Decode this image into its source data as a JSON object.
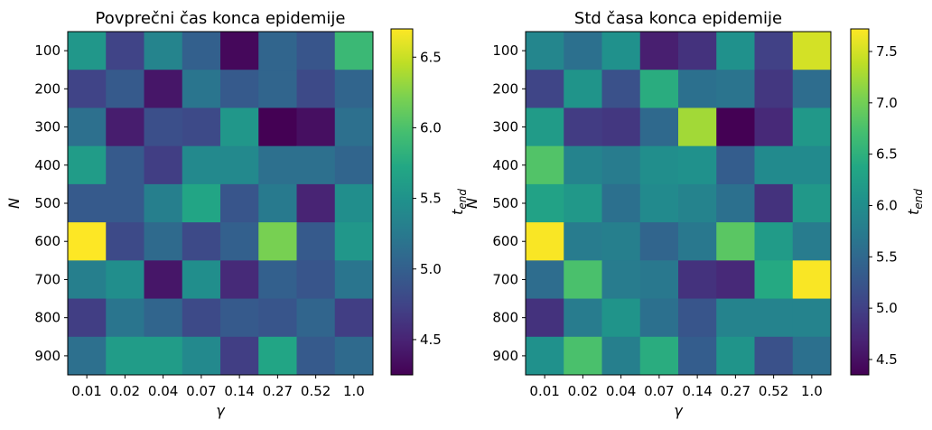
{
  "chart_data": [
    {
      "type": "heatmap",
      "title": "Povprečni čas konca epidemije",
      "xlabel": "γ",
      "ylabel": "N",
      "x_categories": [
        "0.01",
        "0.02",
        "0.04",
        "0.07",
        "0.14",
        "0.27",
        "0.52",
        "1.0"
      ],
      "y_categories": [
        "100",
        "200",
        "300",
        "400",
        "500",
        "600",
        "700",
        "800",
        "900"
      ],
      "values": [
        [
          5.55,
          4.75,
          5.35,
          5.0,
          4.3,
          5.05,
          4.9,
          5.9
        ],
        [
          4.75,
          4.95,
          4.4,
          5.2,
          4.95,
          5.05,
          4.8,
          5.05
        ],
        [
          5.15,
          4.45,
          4.85,
          4.8,
          5.55,
          4.25,
          4.35,
          5.15
        ],
        [
          5.6,
          4.95,
          4.7,
          5.4,
          5.4,
          5.15,
          5.15,
          5.05
        ],
        [
          4.95,
          4.95,
          5.3,
          5.7,
          4.9,
          5.25,
          4.5,
          5.45
        ],
        [
          6.7,
          4.8,
          5.1,
          4.8,
          5.0,
          6.2,
          4.95,
          5.55
        ],
        [
          5.3,
          5.45,
          4.4,
          5.45,
          4.55,
          5.0,
          4.9,
          5.2
        ],
        [
          4.7,
          5.2,
          5.05,
          4.8,
          4.95,
          4.9,
          5.05,
          4.7
        ],
        [
          5.15,
          5.6,
          5.6,
          5.4,
          4.7,
          5.7,
          4.95,
          5.1
        ]
      ],
      "colorbar": {
        "label": "t_end",
        "min": 4.25,
        "max": 6.7,
        "ticks": [
          "4.5",
          "5.0",
          "5.5",
          "6.0",
          "6.5"
        ]
      }
    },
    {
      "type": "heatmap",
      "title": "Std časa konca epidemije",
      "xlabel": "γ",
      "ylabel": "N",
      "x_categories": [
        "0.01",
        "0.02",
        "0.04",
        "0.07",
        "0.14",
        "0.27",
        "0.52",
        "1.0"
      ],
      "y_categories": [
        "100",
        "200",
        "300",
        "400",
        "500",
        "600",
        "700",
        "800",
        "900"
      ],
      "values": [
        [
          5.9,
          5.6,
          6.05,
          4.65,
          4.85,
          6.05,
          5.0,
          7.5
        ],
        [
          5.05,
          6.1,
          5.2,
          6.45,
          5.6,
          5.65,
          4.9,
          5.55
        ],
        [
          6.2,
          4.95,
          4.9,
          5.5,
          7.25,
          4.35,
          4.75,
          6.15
        ],
        [
          6.8,
          5.85,
          5.75,
          6.0,
          6.05,
          5.35,
          5.95,
          5.95
        ],
        [
          6.3,
          6.15,
          5.6,
          5.95,
          5.85,
          5.6,
          4.85,
          6.15
        ],
        [
          7.7,
          5.75,
          5.8,
          5.45,
          5.7,
          6.85,
          6.2,
          5.75
        ],
        [
          5.55,
          6.75,
          5.75,
          5.7,
          4.85,
          4.75,
          6.4,
          7.7
        ],
        [
          4.85,
          5.75,
          6.1,
          5.6,
          5.25,
          5.85,
          5.85,
          5.85
        ],
        [
          6.05,
          6.75,
          5.8,
          6.45,
          5.35,
          6.1,
          5.2,
          5.6
        ]
      ],
      "colorbar": {
        "label": "t_end",
        "min": 4.35,
        "max": 7.72,
        "ticks": [
          "4.5",
          "5.0",
          "5.5",
          "6.0",
          "6.5",
          "7.0",
          "7.5"
        ]
      }
    }
  ],
  "colormap": "viridis",
  "colors": {
    "axis": "#000000",
    "background": "#ffffff"
  }
}
